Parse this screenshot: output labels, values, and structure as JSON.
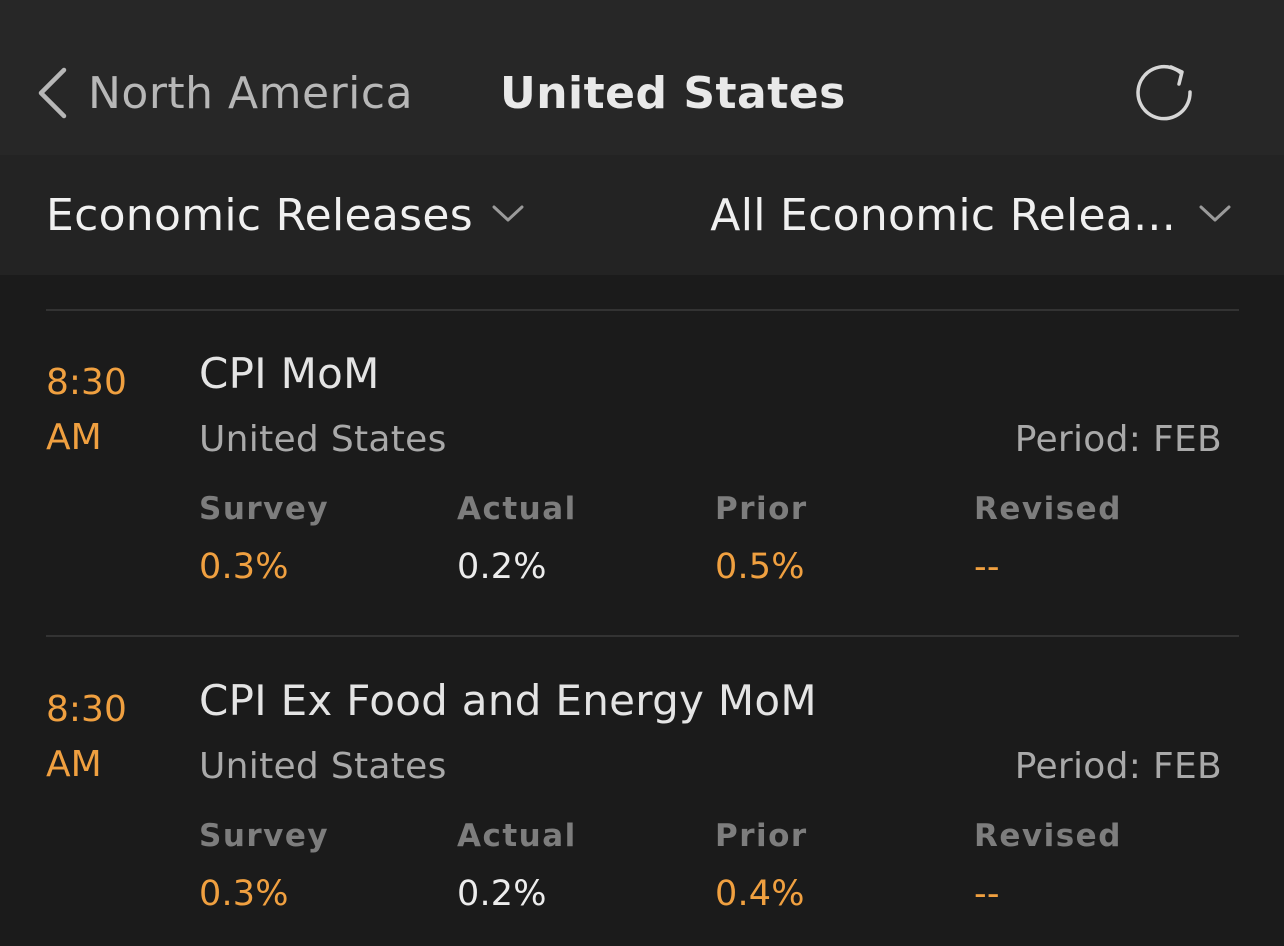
{
  "nav": {
    "back_label": "North America",
    "title": "United States",
    "refresh_icon": "refresh-icon"
  },
  "filters": {
    "category": "Economic Releases",
    "subcategory": "All Economic Relea..."
  },
  "colors": {
    "accent": "#f0a040",
    "background": "#1b1b1b",
    "navbar": "#272727",
    "filterbar": "#232323"
  },
  "releases": [
    {
      "time_line1": "8:30",
      "time_line2": "AM",
      "title": "CPI MoM",
      "country": "United States",
      "period": "Period: FEB",
      "survey_label": "Survey",
      "survey": "0.3%",
      "actual_label": "Actual",
      "actual": "0.2%",
      "prior_label": "Prior",
      "prior": "0.5%",
      "revised_label": "Revised",
      "revised": "--"
    },
    {
      "time_line1": "8:30",
      "time_line2": "AM",
      "title": "CPI Ex Food and Energy MoM",
      "country": "United States",
      "period": "Period: FEB",
      "survey_label": "Survey",
      "survey": "0.3%",
      "actual_label": "Actual",
      "actual": "0.2%",
      "prior_label": "Prior",
      "prior": "0.4%",
      "revised_label": "Revised",
      "revised": "--"
    }
  ]
}
